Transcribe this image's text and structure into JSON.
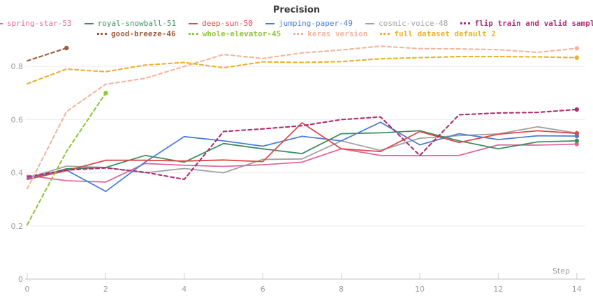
{
  "page": {
    "title": "Precision"
  },
  "chart_data": {
    "type": "line",
    "title": "Precision",
    "xlabel": "Step",
    "x": [
      0,
      1,
      2,
      3,
      4,
      5,
      6,
      7,
      8,
      9,
      10,
      11,
      12,
      13,
      14
    ],
    "x_ticks": [
      0,
      2,
      4,
      6,
      8,
      10,
      12,
      14
    ],
    "y_ticks": [
      {
        "value": 0,
        "label": "0"
      },
      {
        "value": 0.2,
        "label": "0.2"
      },
      {
        "value": 0.4,
        "label": "0.4"
      },
      {
        "value": 0.6,
        "label": "0.6"
      },
      {
        "value": 0.8,
        "label": "0.8"
      }
    ],
    "xlim": [
      0,
      14
    ],
    "ylim": [
      0,
      0.9
    ],
    "grid": "horizontal",
    "legend_position": "top",
    "legend_rows": [
      [
        0,
        1,
        2,
        3,
        4,
        5
      ],
      [
        6,
        7,
        8,
        9
      ]
    ],
    "series": [
      {
        "name": "spring-star-53",
        "color": "#e2679b",
        "style": "solid",
        "bold": false,
        "values": [
          0.39,
          0.37,
          0.365,
          0.435,
          0.428,
          0.424,
          0.43,
          0.44,
          0.49,
          0.465,
          0.464,
          0.465,
          0.505,
          0.504,
          0.508
        ]
      },
      {
        "name": "royal-snowball-51",
        "color": "#3d8e5f",
        "style": "solid",
        "bold": false,
        "values": [
          0.375,
          0.415,
          0.42,
          0.465,
          0.44,
          0.51,
          0.49,
          0.472,
          0.547,
          0.55,
          0.558,
          0.52,
          0.49,
          0.516,
          0.52
        ]
      },
      {
        "name": "deep-sun-50",
        "color": "#dc4a47",
        "style": "solid",
        "bold": false,
        "values": [
          0.375,
          0.408,
          0.447,
          0.447,
          0.444,
          0.448,
          0.442,
          0.588,
          0.49,
          0.48,
          0.555,
          0.514,
          0.545,
          0.558,
          0.548
        ]
      },
      {
        "name": "jumping-paper-49",
        "color": "#4d7ed3",
        "style": "solid",
        "bold": false,
        "values": [
          0.38,
          0.41,
          0.33,
          0.44,
          0.536,
          0.52,
          0.5,
          0.537,
          0.52,
          0.59,
          0.505,
          0.547,
          0.525,
          0.539,
          0.538
        ]
      },
      {
        "name": "cosmic-voice-48",
        "color": "#a1a1a1",
        "style": "solid",
        "bold": false,
        "values": [
          0.38,
          0.425,
          0.42,
          0.4,
          0.416,
          0.4,
          0.45,
          0.452,
          0.52,
          0.484,
          0.53,
          0.54,
          0.546,
          0.573,
          0.549
        ]
      },
      {
        "name": "flip train and valid sample",
        "color": "#ae2d72",
        "style": "dashed",
        "bold": true,
        "values": [
          0.385,
          0.41,
          0.418,
          0.402,
          0.375,
          0.555,
          0.565,
          0.577,
          0.6,
          0.61,
          0.465,
          0.618,
          0.625,
          0.627,
          0.638
        ]
      },
      {
        "name": "good-breeze-46",
        "color": "#9c5c3d",
        "style": "dashed",
        "bold": true,
        "values": [
          0.821,
          0.869,
          null,
          null,
          null,
          null,
          null,
          null,
          null,
          null,
          null,
          null,
          null,
          null,
          null
        ]
      },
      {
        "name": "whole-elevator-45",
        "color": "#93c43e",
        "style": "dashed",
        "bold": true,
        "values": [
          0.205,
          0.48,
          0.7,
          null,
          null,
          null,
          null,
          null,
          null,
          null,
          null,
          null,
          null,
          null,
          null
        ]
      },
      {
        "name": "keras version",
        "color": "#f2b49e",
        "style": "dashed",
        "bold": true,
        "values": [
          0.34,
          0.63,
          0.733,
          0.755,
          0.8,
          0.845,
          0.83,
          0.851,
          0.862,
          0.876,
          0.867,
          0.866,
          0.863,
          0.853,
          0.868
        ]
      },
      {
        "name": "full dataset default 2",
        "color": "#ecb02d",
        "style": "dashed",
        "bold": true,
        "values": [
          0.735,
          0.79,
          0.78,
          0.805,
          0.815,
          0.795,
          0.817,
          0.815,
          0.818,
          0.829,
          0.833,
          0.837,
          0.837,
          0.836,
          0.833
        ]
      }
    ],
    "style_colors": {
      "grid": "#ededed",
      "axis": "#d6d6d6",
      "tick": "#cfcfcf",
      "tick_text": "#9b9b9b"
    }
  }
}
